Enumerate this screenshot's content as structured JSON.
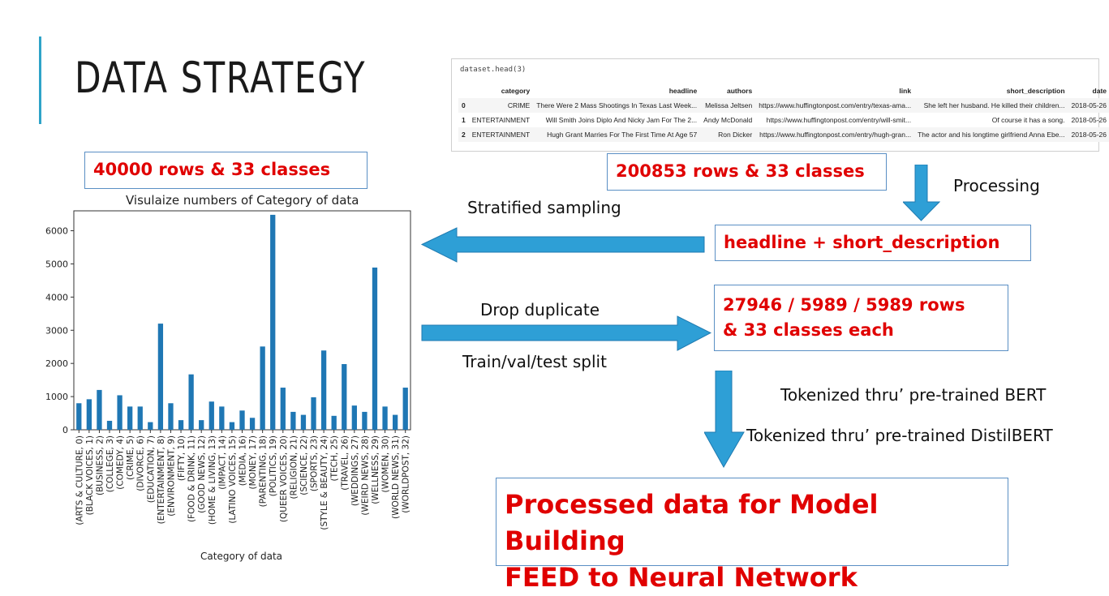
{
  "slide": {
    "title": "DATA STRATEGY"
  },
  "dataframe": {
    "code": "dataset.head(3)",
    "columns": [
      "",
      "category",
      "headline",
      "authors",
      "link",
      "short_description",
      "date"
    ],
    "rows": [
      [
        "0",
        "CRIME",
        "There Were 2 Mass Shootings In Texas Last Week...",
        "Melissa Jeltsen",
        "https://www.huffingtonpost.com/entry/texas-ama...",
        "She left her husband. He killed their children...",
        "2018-05-26"
      ],
      [
        "1",
        "ENTERTAINMENT",
        "Will Smith Joins Diplo And Nicky Jam For The 2...",
        "Andy McDonald",
        "https://www.huffingtonpost.com/entry/will-smit...",
        "Of course it has a song.",
        "2018-05-26"
      ],
      [
        "2",
        "ENTERTAINMENT",
        "Hugh Grant Marries For The First Time At Age 57",
        "Ron Dicker",
        "https://www.huffingtonpost.com/entry/hugh-gran...",
        "The actor and his longtime girlfriend Anna Ebe...",
        "2018-05-26"
      ]
    ]
  },
  "boxes": {
    "sampled": "40000 rows & 33 classes",
    "full": "200853 rows & 33 classes",
    "features": "headline + short_description",
    "split_line1": "27946 / 5989 / 5989 rows",
    "split_line2": "& 33 classes each",
    "final_line1": "Processed data for Model Building",
    "final_line2": "FEED to Neural Network"
  },
  "labels": {
    "processing": "Processing",
    "stratified": "Stratified sampling",
    "drop_duplicate": "Drop duplicate",
    "train_split": "Train/val/test split",
    "bert": "Tokenized thru’ pre-trained BERT",
    "distilbert": "Tokenized thru’ pre-trained DistilBERT"
  },
  "colors": {
    "accent": "#2ea3c8",
    "arrow": "#2e9fd6",
    "highlight_text": "#e00000",
    "bar": "#1f77b4"
  },
  "chart_data": {
    "type": "bar",
    "title": "Visulaize numbers of Category of data",
    "xlabel": "Category of data",
    "ylabel": "",
    "ylim": [
      0,
      6600
    ],
    "yticks": [
      0,
      1000,
      2000,
      3000,
      4000,
      5000,
      6000
    ],
    "categories": [
      "(ARTS & CULTURE, 0)",
      "(BLACK VOICES, 1)",
      "(BUSINESS, 2)",
      "(COLLEGE, 3)",
      "(COMEDY, 4)",
      "(CRIME, 5)",
      "(DIVORCE, 6)",
      "(EDUCATION, 7)",
      "(ENTERTAINMENT, 8)",
      "(ENVIRONMENT, 9)",
      "(FIFTY, 10)",
      "(FOOD & DRINK, 11)",
      "(GOOD NEWS, 12)",
      "(HOME & LIVING, 13)",
      "(IMPACT, 14)",
      "(LATINO VOICES, 15)",
      "(MEDIA, 16)",
      "(MONEY, 17)",
      "(PARENTING, 18)",
      "(POLITICS, 19)",
      "(QUEER VOICES, 20)",
      "(RELIGION, 21)",
      "(SCIENCE, 22)",
      "(SPORTS, 23)",
      "(STYLE & BEAUTY, 24)",
      "(TECH, 25)",
      "(TRAVEL, 26)",
      "(WEDDINGS, 27)",
      "(WEIRD NEWS, 28)",
      "(WELLNESS, 29)",
      "(WOMEN, 30)",
      "(WORLD NEWS, 31)",
      "(WORLDPOST, 32)"
    ],
    "values": [
      800,
      920,
      1200,
      270,
      1040,
      700,
      700,
      230,
      3200,
      800,
      290,
      1670,
      290,
      850,
      700,
      230,
      580,
      360,
      2510,
      6480,
      1270,
      540,
      450,
      980,
      2390,
      420,
      1980,
      730,
      540,
      4890,
      700,
      450,
      1270
    ],
    "grid": false
  }
}
